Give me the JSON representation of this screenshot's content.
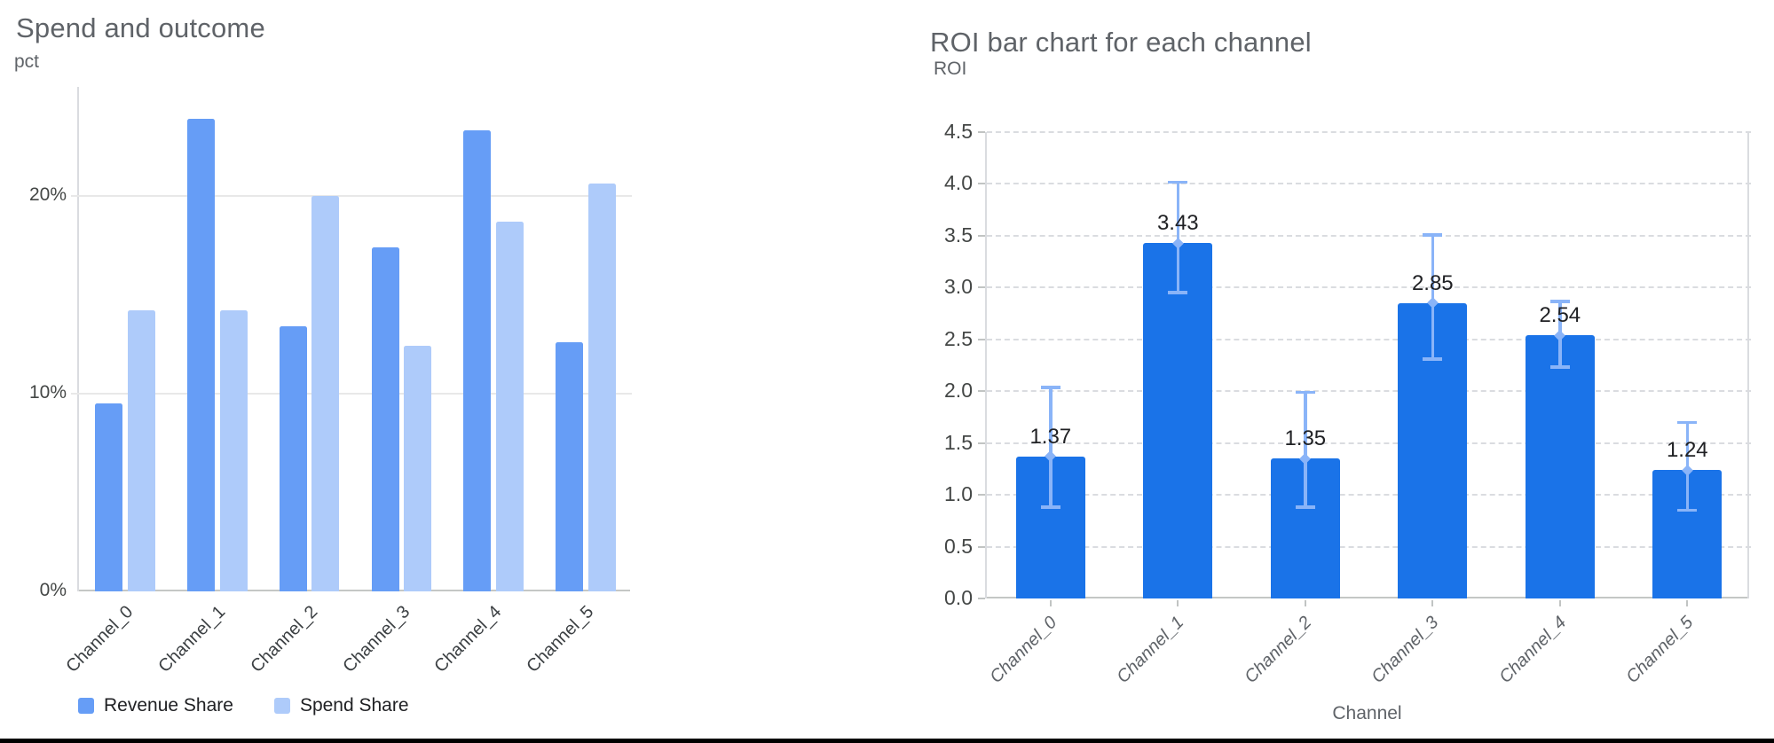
{
  "page": {
    "background": "#ffffff",
    "bottom_bar_color": "#000000"
  },
  "chart_data": [
    {
      "type": "bar",
      "title": "Spend and outcome",
      "ylabel": "pct",
      "xlabel": "",
      "categories": [
        "Channel_0",
        "Channel_1",
        "Channel_2",
        "Channel_3",
        "Channel_4",
        "Channel_5"
      ],
      "series": [
        {
          "name": "Revenue Share",
          "color": "#669DF6",
          "values": [
            9.5,
            23.9,
            13.4,
            17.4,
            23.3,
            12.6
          ]
        },
        {
          "name": "Spend Share",
          "color": "#AECBFA",
          "values": [
            14.2,
            14.2,
            20.0,
            12.4,
            18.7,
            20.6
          ]
        }
      ],
      "y_ticks": [
        {
          "value": 0,
          "label": "0%"
        },
        {
          "value": 10,
          "label": "10%"
        },
        {
          "value": 20,
          "label": "20%"
        }
      ],
      "ylim": [
        0,
        25.5
      ],
      "grid": true,
      "legend_position": "bottom"
    },
    {
      "type": "bar",
      "title": "ROI bar chart for each channel",
      "ylabel": "ROI",
      "xlabel": "Channel",
      "categories": [
        "Channel_0",
        "Channel_1",
        "Channel_2",
        "Channel_3",
        "Channel_4",
        "Channel_5"
      ],
      "values": [
        1.37,
        3.43,
        1.35,
        2.85,
        2.54,
        1.24
      ],
      "value_labels": [
        "1.37",
        "3.43",
        "1.35",
        "2.85",
        "2.54",
        "1.24"
      ],
      "error_low": [
        0.88,
        2.95,
        0.88,
        2.31,
        2.23,
        0.85
      ],
      "error_high": [
        2.04,
        4.02,
        1.99,
        3.51,
        2.87,
        1.7
      ],
      "bar_color": "#1A73E8",
      "error_color": "#8AB4F8",
      "y_ticks": [
        {
          "value": 0.0,
          "label": "0.0"
        },
        {
          "value": 0.5,
          "label": "0.5"
        },
        {
          "value": 1.0,
          "label": "1.0"
        },
        {
          "value": 1.5,
          "label": "1.5"
        },
        {
          "value": 2.0,
          "label": "2.0"
        },
        {
          "value": 2.5,
          "label": "2.5"
        },
        {
          "value": 3.0,
          "label": "3.0"
        },
        {
          "value": 3.5,
          "label": "3.5"
        },
        {
          "value": 4.0,
          "label": "4.0"
        },
        {
          "value": 4.5,
          "label": "4.5"
        }
      ],
      "ylim": [
        0,
        4.5
      ],
      "grid": true,
      "legend_position": "none"
    }
  ]
}
